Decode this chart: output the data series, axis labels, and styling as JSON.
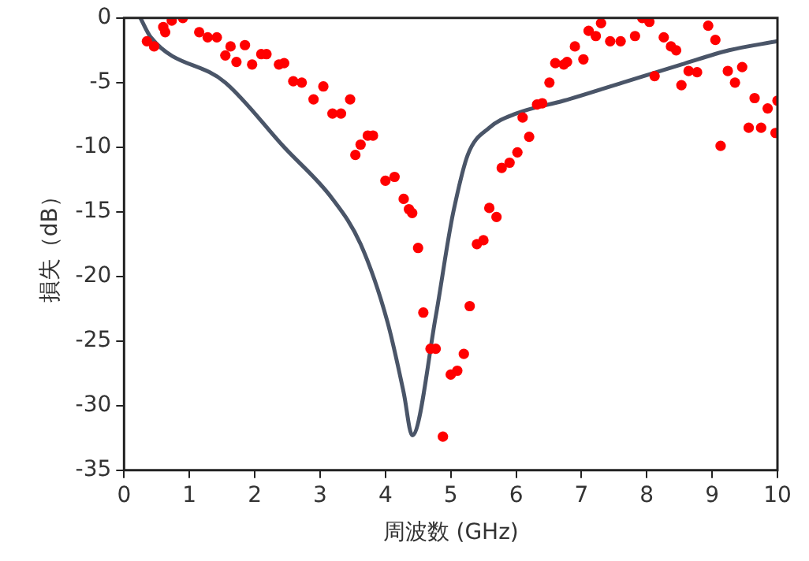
{
  "chart_data": {
    "type": "scatter",
    "xlabel": "周波数 (GHz)",
    "ylabel": "損失（dB）",
    "xlim": [
      0,
      10
    ],
    "xticks": [
      0,
      1,
      2,
      3,
      4,
      5,
      6,
      7,
      8,
      9,
      10
    ],
    "ylim": [
      -35,
      0
    ],
    "yticks": [
      0,
      -5,
      -10,
      -15,
      -20,
      -25,
      -30,
      -35
    ],
    "grid": false,
    "legend": false,
    "series": [
      {
        "type": "line",
        "color": "#4a5568",
        "marker": "none",
        "x": [
          0.25,
          0.41,
          1.55,
          2.45,
          3.19,
          3.62,
          4.03,
          4.28,
          4.41,
          4.77,
          4.96,
          5.04,
          5.26,
          5.59,
          6.0,
          6.73,
          7.63,
          8.53,
          9.26,
          10.0
        ],
        "values": [
          0,
          -1.5,
          -5,
          -10,
          -14,
          -17.5,
          -23.5,
          -29,
          -32.3,
          -23.1,
          -17.2,
          -15,
          -10.6,
          -8.5,
          -7.4,
          -6.4,
          -5,
          -3.6,
          -2.5,
          -1.8
        ]
      },
      {
        "type": "scatter",
        "color": "#ff0000",
        "marker": "circle",
        "x": [
          0.35,
          0.46,
          0.6,
          0.63,
          0.73,
          0.9,
          1.15,
          1.28,
          1.42,
          1.55,
          1.63,
          1.72,
          1.85,
          1.96,
          2.1,
          2.18,
          2.37,
          2.45,
          2.59,
          2.72,
          2.9,
          3.05,
          3.19,
          3.32,
          3.46,
          3.54,
          3.62,
          3.73,
          3.81,
          4.0,
          4.14,
          4.28,
          4.36,
          4.41,
          4.5,
          4.58,
          4.69,
          4.77,
          4.88,
          5.0,
          5.1,
          5.2,
          5.29,
          5.4,
          5.5,
          5.59,
          5.7,
          5.78,
          5.9,
          6.02,
          6.1,
          6.2,
          6.32,
          6.4,
          6.51,
          6.6,
          6.73,
          6.78,
          6.9,
          7.03,
          7.11,
          7.22,
          7.3,
          7.44,
          7.6,
          7.82,
          7.93,
          8.04,
          8.12,
          8.26,
          8.37,
          8.45,
          8.53,
          8.64,
          8.77,
          8.94,
          9.05,
          9.13,
          9.24,
          9.35,
          9.46,
          9.56,
          9.65,
          9.75,
          9.85,
          9.97,
          10.0
        ],
        "values": [
          -1.8,
          -2.2,
          -0.7,
          -1.1,
          -0.2,
          0,
          -1.1,
          -1.5,
          -1.5,
          -2.9,
          -2.2,
          -3.4,
          -2.1,
          -3.6,
          -2.8,
          -2.8,
          -3.6,
          -3.5,
          -4.9,
          -5.0,
          -6.3,
          -5.3,
          -7.4,
          -7.4,
          -6.3,
          -10.6,
          -9.8,
          -9.1,
          -9.1,
          -12.6,
          -12.3,
          -14,
          -14.8,
          -15.1,
          -17.8,
          -22.8,
          -25.6,
          -25.6,
          -32.4,
          -27.6,
          -27.3,
          -26,
          -22.3,
          -17.5,
          -17.2,
          -14.7,
          -15.4,
          -11.6,
          -11.2,
          -10.4,
          -7.7,
          -9.2,
          -6.7,
          -6.6,
          -5.0,
          -3.5,
          -3.6,
          -3.4,
          -2.2,
          -3.2,
          -1.0,
          -1.4,
          -0.4,
          -1.8,
          -1.8,
          -1.4,
          0,
          -0.3,
          -4.5,
          -1.5,
          -2.2,
          -2.5,
          -5.2,
          -4.1,
          -4.2,
          -0.6,
          -1.7,
          -9.9,
          -4.1,
          -5.0,
          -3.8,
          -8.5,
          -6.2,
          -8.5,
          -7.0,
          -8.9,
          -6.4
        ]
      }
    ]
  }
}
